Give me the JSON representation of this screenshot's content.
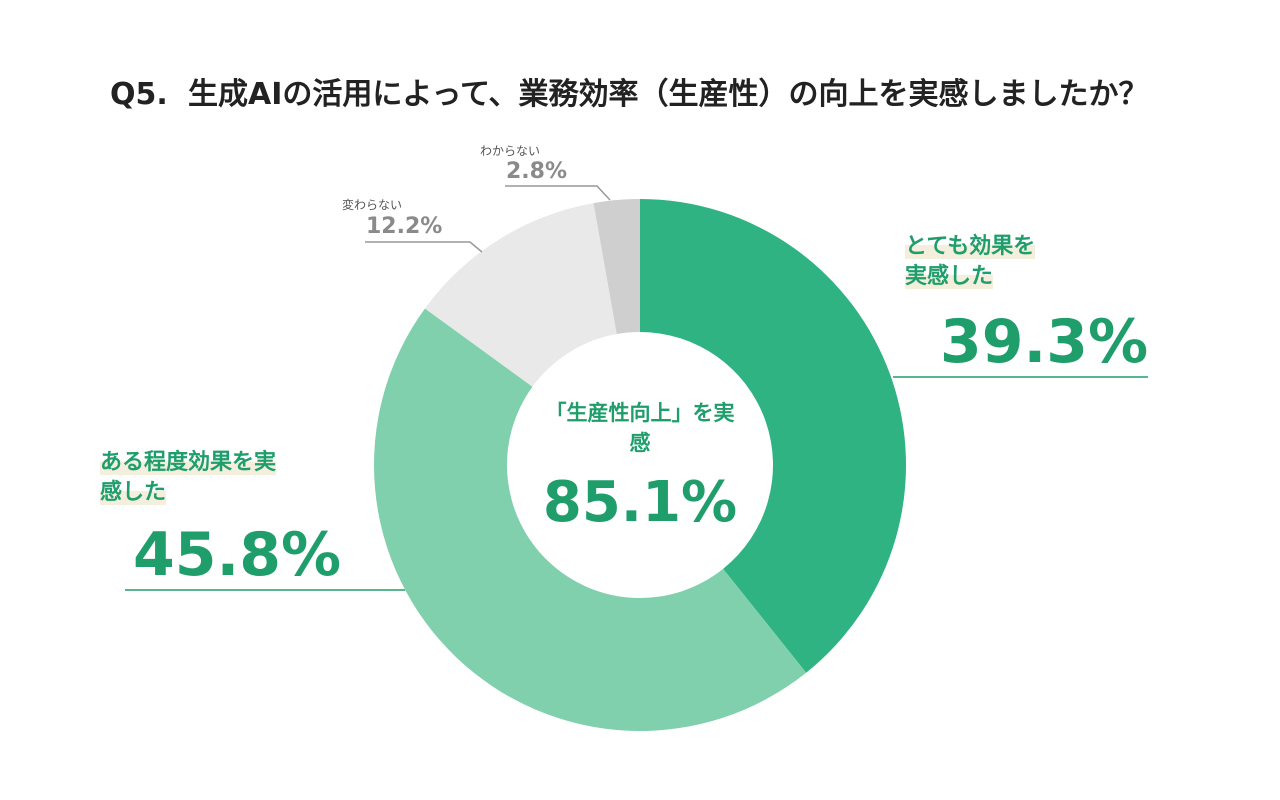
{
  "chart_data": {
    "type": "donut",
    "question_number": "Q5.",
    "title": "生成AIの活用によって、業務効率（生産性）の向上を実感しましたか？",
    "categories": [
      "とても効果を実感した",
      "ある程度効果を実感した",
      "変わらない",
      "わからない"
    ],
    "values": [
      39.3,
      45.8,
      12.2,
      2.8
    ],
    "value_labels": [
      "39.3%",
      "45.8%",
      "12.2%",
      "2.8%"
    ],
    "colors": [
      "#2fb383",
      "#80d0ae",
      "#e9e9e9",
      "#cfcfcf"
    ],
    "center_label": "「生産性向上」を実感",
    "center_value": 85.1,
    "center_value_label": "85.1%"
  }
}
